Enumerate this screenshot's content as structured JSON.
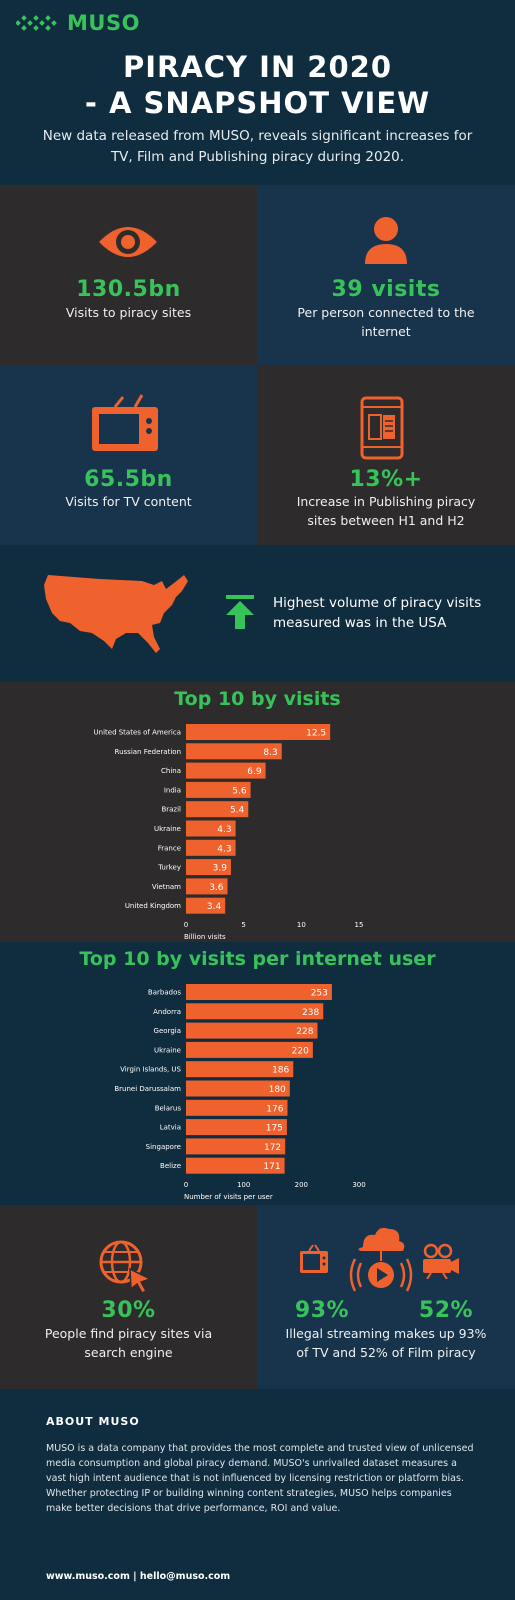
{
  "brand": {
    "name": "MUSO",
    "accent": "#37c35a",
    "orange": "#f0622d"
  },
  "header": {
    "title_line1": "PIRACY IN 2020",
    "title_line2": "- A SNAPSHOT VIEW",
    "subtitle": "New data released from MUSO, reveals significant increases for TV, Film and Publishing piracy during 2020."
  },
  "stats": [
    {
      "value": "130.5bn",
      "caption": "Visits to piracy sites",
      "icon": "eye-icon"
    },
    {
      "value": "39 visits",
      "caption": "Per person connected to the internet",
      "icon": "person-icon"
    },
    {
      "value": "65.5bn",
      "caption": "Visits for TV content",
      "icon": "tv-icon"
    },
    {
      "value": "13%+",
      "caption": "Increase in Publishing piracy sites between H1 and H2",
      "icon": "tablet-book-icon"
    }
  ],
  "usa": {
    "text": "Highest volume of piracy visits measured was in the USA",
    "icon": "up-arrow-icon"
  },
  "chart_data": [
    {
      "type": "bar",
      "orientation": "horizontal",
      "title": "Top 10 by visits",
      "categories": [
        "United States of America",
        "Russian Federation",
        "China",
        "India",
        "Brazil",
        "Ukraine",
        "France",
        "Turkey",
        "Vietnam",
        "United Kingdom"
      ],
      "values": [
        12.5,
        8.3,
        6.9,
        5.6,
        5.4,
        4.3,
        4.3,
        3.9,
        3.6,
        3.4
      ],
      "value_labels": [
        "12.5",
        "8.3",
        "6.9",
        "5.6",
        "5.4",
        "4.3",
        "4.3",
        "3.9",
        "3.6",
        "3.4"
      ],
      "xlabel": "Billion visits",
      "xlim": [
        0,
        15
      ],
      "xticks": [
        0,
        5,
        10,
        15
      ],
      "xtick_labels": [
        "0",
        "5",
        "10",
        "15"
      ],
      "grid": false
    },
    {
      "type": "bar",
      "orientation": "horizontal",
      "title": "Top 10 by visits per internet user",
      "categories": [
        "Barbados",
        "Andorra",
        "Georgia",
        "Ukraine",
        "Virgin Islands, US",
        "Brunei Darussalam",
        "Belarus",
        "Latvia",
        "Singapore",
        "Belize"
      ],
      "values": [
        253,
        238,
        228,
        220,
        186,
        180,
        176,
        175,
        172,
        171
      ],
      "value_labels": [
        "253",
        "238",
        "228",
        "220",
        "186",
        "180",
        "176",
        "175",
        "172",
        "171"
      ],
      "xlabel": "Number of visits per user",
      "xlim": [
        0,
        300
      ],
      "xticks": [
        0,
        100,
        200,
        300
      ],
      "xtick_labels": [
        "0",
        "100",
        "200",
        "300"
      ],
      "grid": false
    }
  ],
  "bottom_stats": [
    {
      "value": "30%",
      "caption": "People find piracy sites via search engine",
      "icon": "globe-cursor-icon"
    },
    {
      "value_tv": "93%",
      "value_film": "52%",
      "caption": "Illegal streaming makes up 93% of TV and 52% of Film piracy",
      "icons": [
        "tv-icon",
        "cloud-play-icon",
        "film-camera-icon"
      ]
    }
  ],
  "about": {
    "title": "ABOUT MUSO",
    "body": "MUSO is a data company that provides the most complete and trusted view of unlicensed media consumption and global piracy demand. MUSO's unrivalled dataset measures a vast high intent audience that is not influenced by licensing restriction or platform bias. Whether protecting IP or building winning content strategies, MUSO helps companies make better decisions that drive performance, ROI and value.",
    "contact": "www.muso.com | hello@muso.com"
  }
}
